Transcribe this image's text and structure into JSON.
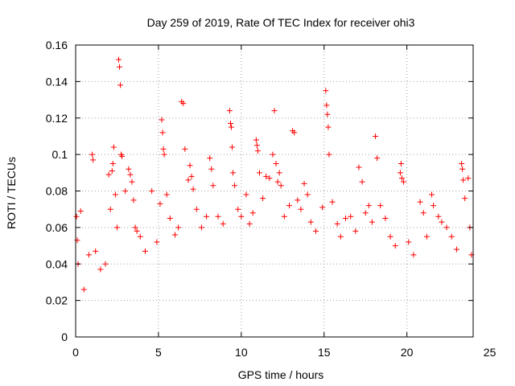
{
  "chart_data": {
    "type": "scatter",
    "title": "Day 259 of 2019, Rate Of TEC Index for receiver ohi3",
    "xlabel": "GPS time / hours",
    "ylabel": "ROTI / TECUs",
    "xlim": [
      0,
      24
    ],
    "ylim": [
      0,
      0.16
    ],
    "x_ticks": [
      "0",
      "5",
      "10",
      "15",
      "20",
      "25"
    ],
    "y_ticks": [
      "0",
      "0.02",
      "0.04",
      "0.06",
      "0.08",
      "0.1",
      "0.12",
      "0.14",
      "0.16"
    ],
    "grid": true,
    "marker": "plus",
    "series": [
      {
        "color": "#ff0000",
        "points": [
          [
            0.05,
            0.066
          ],
          [
            0.1,
            0.053
          ],
          [
            0.15,
            0.04
          ],
          [
            0.3,
            0.069
          ],
          [
            0.5,
            0.026
          ],
          [
            0.8,
            0.045
          ],
          [
            1.0,
            0.1
          ],
          [
            1.05,
            0.097
          ],
          [
            1.2,
            0.047
          ],
          [
            1.5,
            0.037
          ],
          [
            1.8,
            0.04
          ],
          [
            2.0,
            0.089
          ],
          [
            2.1,
            0.07
          ],
          [
            2.2,
            0.091
          ],
          [
            2.25,
            0.095
          ],
          [
            2.3,
            0.104
          ],
          [
            2.4,
            0.078
          ],
          [
            2.5,
            0.06
          ],
          [
            2.6,
            0.152
          ],
          [
            2.65,
            0.148
          ],
          [
            2.7,
            0.138
          ],
          [
            2.75,
            0.1
          ],
          [
            2.8,
            0.099
          ],
          [
            3.0,
            0.08
          ],
          [
            3.2,
            0.092
          ],
          [
            3.3,
            0.089
          ],
          [
            3.4,
            0.085
          ],
          [
            3.5,
            0.075
          ],
          [
            3.6,
            0.06
          ],
          [
            3.7,
            0.058
          ],
          [
            3.9,
            0.055
          ],
          [
            4.2,
            0.047
          ],
          [
            4.6,
            0.08
          ],
          [
            4.9,
            0.052
          ],
          [
            5.1,
            0.073
          ],
          [
            5.2,
            0.119
          ],
          [
            5.25,
            0.112
          ],
          [
            5.3,
            0.103
          ],
          [
            5.35,
            0.1
          ],
          [
            5.5,
            0.078
          ],
          [
            5.7,
            0.065
          ],
          [
            6.0,
            0.056
          ],
          [
            6.2,
            0.06
          ],
          [
            6.4,
            0.129
          ],
          [
            6.5,
            0.128
          ],
          [
            6.6,
            0.103
          ],
          [
            6.8,
            0.086
          ],
          [
            6.9,
            0.094
          ],
          [
            7.0,
            0.088
          ],
          [
            7.1,
            0.081
          ],
          [
            7.3,
            0.07
          ],
          [
            7.6,
            0.06
          ],
          [
            7.9,
            0.066
          ],
          [
            8.1,
            0.098
          ],
          [
            8.2,
            0.092
          ],
          [
            8.3,
            0.083
          ],
          [
            8.6,
            0.066
          ],
          [
            8.9,
            0.062
          ],
          [
            9.3,
            0.124
          ],
          [
            9.35,
            0.117
          ],
          [
            9.4,
            0.115
          ],
          [
            9.45,
            0.104
          ],
          [
            9.5,
            0.09
          ],
          [
            9.6,
            0.083
          ],
          [
            9.8,
            0.07
          ],
          [
            10.0,
            0.066
          ],
          [
            10.3,
            0.078
          ],
          [
            10.5,
            0.062
          ],
          [
            10.7,
            0.068
          ],
          [
            10.9,
            0.108
          ],
          [
            10.95,
            0.105
          ],
          [
            11.0,
            0.102
          ],
          [
            11.1,
            0.09
          ],
          [
            11.3,
            0.076
          ],
          [
            11.5,
            0.088
          ],
          [
            11.7,
            0.087
          ],
          [
            11.9,
            0.1
          ],
          [
            12.0,
            0.124
          ],
          [
            12.1,
            0.095
          ],
          [
            12.2,
            0.085
          ],
          [
            12.3,
            0.09
          ],
          [
            12.4,
            0.083
          ],
          [
            12.6,
            0.066
          ],
          [
            12.9,
            0.072
          ],
          [
            13.1,
            0.113
          ],
          [
            13.2,
            0.112
          ],
          [
            13.4,
            0.075
          ],
          [
            13.6,
            0.07
          ],
          [
            13.8,
            0.084
          ],
          [
            14.0,
            0.078
          ],
          [
            14.2,
            0.063
          ],
          [
            14.5,
            0.058
          ],
          [
            14.9,
            0.071
          ],
          [
            15.1,
            0.135
          ],
          [
            15.15,
            0.127
          ],
          [
            15.2,
            0.122
          ],
          [
            15.25,
            0.115
          ],
          [
            15.3,
            0.1
          ],
          [
            15.5,
            0.074
          ],
          [
            15.8,
            0.062
          ],
          [
            16.0,
            0.055
          ],
          [
            16.3,
            0.065
          ],
          [
            16.6,
            0.066
          ],
          [
            16.9,
            0.058
          ],
          [
            17.1,
            0.093
          ],
          [
            17.3,
            0.085
          ],
          [
            17.5,
            0.068
          ],
          [
            17.7,
            0.072
          ],
          [
            17.9,
            0.063
          ],
          [
            18.1,
            0.11
          ],
          [
            18.2,
            0.098
          ],
          [
            18.4,
            0.072
          ],
          [
            18.7,
            0.065
          ],
          [
            19.0,
            0.055
          ],
          [
            19.3,
            0.05
          ],
          [
            19.6,
            0.09
          ],
          [
            19.65,
            0.095
          ],
          [
            19.7,
            0.087
          ],
          [
            19.8,
            0.085
          ],
          [
            20.1,
            0.052
          ],
          [
            20.4,
            0.045
          ],
          [
            20.8,
            0.074
          ],
          [
            21.0,
            0.068
          ],
          [
            21.2,
            0.055
          ],
          [
            21.5,
            0.078
          ],
          [
            21.6,
            0.072
          ],
          [
            21.9,
            0.066
          ],
          [
            22.1,
            0.063
          ],
          [
            22.4,
            0.06
          ],
          [
            22.7,
            0.055
          ],
          [
            23.0,
            0.048
          ],
          [
            23.3,
            0.095
          ],
          [
            23.35,
            0.092
          ],
          [
            23.4,
            0.086
          ],
          [
            23.5,
            0.076
          ],
          [
            23.7,
            0.087
          ],
          [
            23.8,
            0.06
          ],
          [
            23.9,
            0.045
          ]
        ]
      }
    ]
  }
}
